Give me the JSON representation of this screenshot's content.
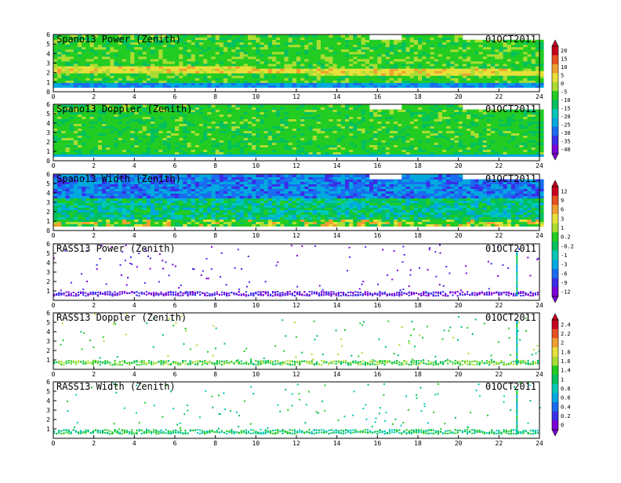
{
  "chart_data": [
    {
      "type": "heatmap",
      "title": "Spano13 Power (Zenith)",
      "date": "01OCT2011",
      "x_ticks": [
        "0",
        "2",
        "4",
        "6",
        "8",
        "10",
        "12",
        "14",
        "16",
        "18",
        "20",
        "22",
        "24"
      ],
      "y_ticks": [
        "0",
        "1",
        "2",
        "3",
        "4",
        "5",
        "6"
      ],
      "xlim": [
        0,
        24
      ],
      "ylim": [
        0,
        6
      ],
      "colorbar": 0,
      "kind": "power"
    },
    {
      "type": "heatmap",
      "title": "Spano13 Doppler (Zenith)",
      "date": "01OCT2011",
      "x_ticks": [
        "0",
        "2",
        "4",
        "6",
        "8",
        "10",
        "12",
        "14",
        "16",
        "18",
        "20",
        "22",
        "24"
      ],
      "y_ticks": [
        "0",
        "1",
        "2",
        "3",
        "4",
        "5",
        "6"
      ],
      "xlim": [
        0,
        24
      ],
      "ylim": [
        0,
        6
      ],
      "colorbar": 0,
      "kind": "doppler"
    },
    {
      "type": "heatmap",
      "title": "Spano13 Width (Zenith)",
      "date": "01OCT2011",
      "x_ticks": [
        "0",
        "2",
        "4",
        "6",
        "8",
        "10",
        "12",
        "14",
        "16",
        "18",
        "20",
        "22",
        "24"
      ],
      "y_ticks": [
        "0",
        "1",
        "2",
        "3",
        "4",
        "5",
        "6"
      ],
      "xlim": [
        0,
        24
      ],
      "ylim": [
        0,
        6
      ],
      "colorbar": 1,
      "kind": "width"
    },
    {
      "type": "scatter",
      "title": "RASS13 Power (Zenith)",
      "date": "01OCT2011",
      "x_ticks": [
        "0",
        "2",
        "4",
        "6",
        "8",
        "10",
        "12",
        "14",
        "16",
        "18",
        "20",
        "22",
        "24"
      ],
      "y_ticks": [
        "1",
        "2",
        "3",
        "4",
        "5",
        "6"
      ],
      "xlim": [
        0,
        24
      ],
      "ylim": [
        0,
        6
      ],
      "colorbar": 1,
      "kind": "rpower"
    },
    {
      "type": "scatter",
      "title": "RASS13 Doppler (Zenith)",
      "date": "01OCT2011",
      "x_ticks": [
        "0",
        "2",
        "4",
        "6",
        "8",
        "10",
        "12",
        "14",
        "16",
        "18",
        "20",
        "22",
        "24"
      ],
      "y_ticks": [
        "1",
        "2",
        "3",
        "4",
        "5",
        "6"
      ],
      "xlim": [
        0,
        24
      ],
      "ylim": [
        0,
        6
      ],
      "colorbar": 2,
      "kind": "rdoppler"
    },
    {
      "type": "scatter",
      "title": "RASS13 Width (Zenith)",
      "date": "01OCT2011",
      "x_ticks": [
        "0",
        "2",
        "4",
        "6",
        "8",
        "10",
        "12",
        "14",
        "16",
        "18",
        "20",
        "22",
        "24"
      ],
      "y_ticks": [
        "1",
        "2",
        "3",
        "4",
        "5",
        "6"
      ],
      "xlim": [
        0,
        24
      ],
      "ylim": [
        0,
        6
      ],
      "colorbar": 2,
      "kind": "rwidth"
    }
  ],
  "colorbars": [
    {
      "labels": [
        "20",
        "15",
        "10",
        "5",
        "0",
        "-5",
        "-10",
        "-15",
        "-20",
        "-25",
        "-30",
        "-35",
        "-40"
      ]
    },
    {
      "labels": [
        "12",
        "9",
        "6",
        "3",
        "1",
        "0.2",
        "-0.2",
        "-1",
        "-3",
        "-6",
        "-9",
        "-12"
      ]
    },
    {
      "labels": [
        "2.4",
        "2.2",
        "2",
        "1.8",
        "1.6",
        "1.4",
        "1",
        "0.8",
        "0.6",
        "0.4",
        "0.2",
        "0"
      ]
    }
  ],
  "colors": {
    "palette": [
      "#7b00d6",
      "#3a2ee8",
      "#1a6cf0",
      "#00a8e0",
      "#00c8b8",
      "#00c060",
      "#22cc22",
      "#aadd33",
      "#e8e03a",
      "#f0a030",
      "#e85020",
      "#c80020"
    ]
  }
}
